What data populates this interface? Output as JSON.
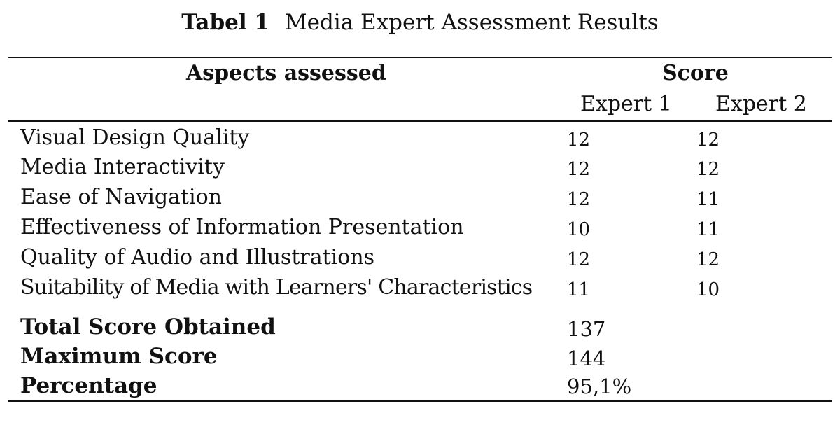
{
  "caption": {
    "label": "Tabel 1",
    "title": "Media Expert Assessment Results"
  },
  "header": {
    "aspects": "Aspects assessed",
    "score": "Score",
    "expert1": "Expert 1",
    "expert2": "Expert 2"
  },
  "rows": [
    {
      "aspect": "Visual Design Quality",
      "expert1": "12",
      "expert2": "12"
    },
    {
      "aspect": "Media Interactivity",
      "expert1": "12",
      "expert2": "12"
    },
    {
      "aspect": "Ease of Navigation",
      "expert1": "12",
      "expert2": "11"
    },
    {
      "aspect": "Effectiveness of Information Presentation",
      "expert1": "10",
      "expert2": "11"
    },
    {
      "aspect": "Quality of Audio and Illustrations",
      "expert1": "12",
      "expert2": "12"
    },
    {
      "aspect": "Suitability of Media with Learners' Characteristics",
      "expert1": "11",
      "expert2": "10"
    }
  ],
  "summary": [
    {
      "label": "Total Score Obtained",
      "value": "137"
    },
    {
      "label": "Maximum Score",
      "value": "144"
    },
    {
      "label": "Percentage",
      "value": "95,1%"
    }
  ]
}
